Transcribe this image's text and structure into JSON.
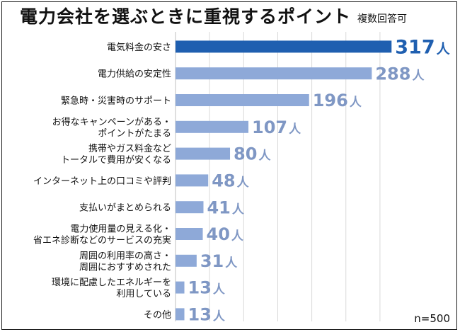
{
  "title": "電力会社を選ぶときに重視するポイント",
  "subtitle": "複数回答可",
  "note": "n=500",
  "colors": {
    "highlight": "#1f5fb0",
    "bar": "#8ea9d8",
    "label_highlight": "#1f5fb0",
    "label": "#7f97c4",
    "grid": "#d9d9d9"
  },
  "chart_data": {
    "type": "bar",
    "orientation": "horizontal",
    "title": "電力会社を選ぶときに重視するポイント",
    "subtitle": "複数回答可",
    "unit": "人",
    "xlim": [
      0,
      320
    ],
    "grid": true,
    "categories": [
      [
        "電気料金の安さ"
      ],
      [
        "電力供給の安定性"
      ],
      [
        "緊急時・災害時のサポート"
      ],
      [
        "お得なキャンペーンがある・",
        "ポイントがたまる"
      ],
      [
        "携帯やガス料金など",
        "トータルで費用が安くなる"
      ],
      [
        "インターネット上の口コミや評判"
      ],
      [
        "支払いがまとめられる"
      ],
      [
        "電力使用量の見える化・",
        "省エネ診断などのサービスの充実"
      ],
      [
        "周囲の利用率の高さ・",
        "周囲におすすめされた"
      ],
      [
        "環境に配慮したエネルギーを",
        "利用している"
      ],
      [
        "その他"
      ]
    ],
    "values": [
      317,
      288,
      196,
      107,
      80,
      48,
      41,
      40,
      31,
      13,
      13
    ],
    "value_labels": [
      "317",
      "288",
      "196",
      "107",
      "80",
      "48",
      "41",
      "40",
      "31",
      "13",
      "13"
    ]
  }
}
